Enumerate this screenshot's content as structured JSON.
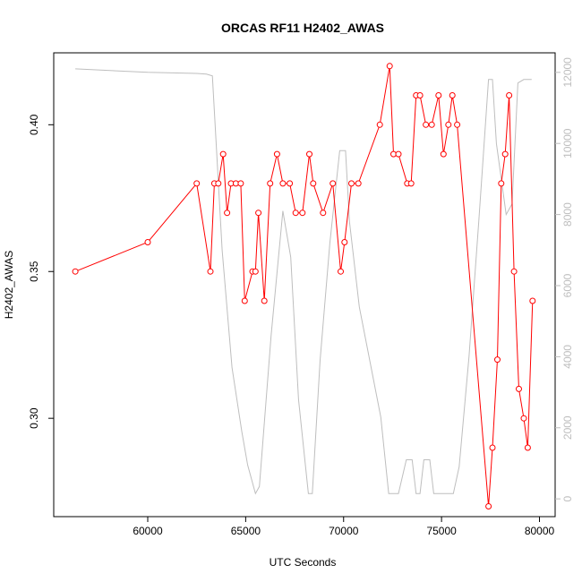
{
  "chart_data": {
    "type": "line",
    "title": "ORCAS RF11 H2402_AWAS",
    "xlabel": "UTC Seconds",
    "ylabel": "H2402_AWAS",
    "xlim": [
      55200,
      80800
    ],
    "ylim": [
      0.2665,
      0.4245
    ],
    "y2lim": [
      -500,
      12550
    ],
    "x_ticks": [
      60000,
      65000,
      70000,
      75000,
      80000
    ],
    "x_tick_labels": [
      "60000",
      "65000",
      "70000",
      "75000",
      "80000"
    ],
    "y_ticks": [
      0.3,
      0.35,
      0.4
    ],
    "y_tick_labels": [
      "0.30",
      "0.35",
      "0.40"
    ],
    "y2_ticks": [
      0,
      2000,
      4000,
      6000,
      8000,
      10000,
      12000
    ],
    "y2_tick_labels": [
      "0",
      "2000",
      "4000",
      "6000",
      "8000",
      "10000",
      "12000"
    ],
    "colors": {
      "primary": "#ff0000",
      "secondary": "#bebebe",
      "axis": "#000000"
    },
    "series": [
      {
        "axis": "left",
        "color": "#ff0000",
        "markers": "open-circle",
        "x": [
          56300,
          60000,
          62500,
          63200,
          63400,
          63600,
          63850,
          64050,
          64250,
          64500,
          64750,
          64950,
          65350,
          65500,
          65650,
          65950,
          66250,
          66600,
          66900,
          67250,
          67550,
          67900,
          68250,
          68450,
          68950,
          69450,
          69850,
          70050,
          70400,
          70750,
          71850,
          72350,
          72550,
          72800,
          73250,
          73450,
          73700,
          73900,
          74200,
          74500,
          74850,
          75100,
          75350,
          75550,
          75800,
          77400,
          77600,
          77850,
          78050,
          78250,
          78450,
          78700,
          78950,
          79200,
          79400,
          79650
        ],
        "y": [
          0.35,
          0.36,
          0.38,
          0.35,
          0.38,
          0.38,
          0.39,
          0.37,
          0.38,
          0.38,
          0.38,
          0.34,
          0.35,
          0.35,
          0.37,
          0.34,
          0.38,
          0.39,
          0.38,
          0.38,
          0.37,
          0.37,
          0.39,
          0.38,
          0.37,
          0.38,
          0.35,
          0.36,
          0.38,
          0.38,
          0.4,
          0.42,
          0.39,
          0.39,
          0.38,
          0.38,
          0.41,
          0.41,
          0.4,
          0.4,
          0.41,
          0.39,
          0.4,
          0.41,
          0.4,
          0.27,
          0.29,
          0.32,
          0.38,
          0.39,
          0.41,
          0.35,
          0.31,
          0.3,
          0.29,
          0.34
        ]
      },
      {
        "axis": "right",
        "color": "#bebebe",
        "markers": "none",
        "x": [
          56300,
          60000,
          62500,
          63000,
          63300,
          63800,
          64300,
          64800,
          65100,
          65500,
          65700,
          66300,
          66900,
          67300,
          67700,
          68200,
          68400,
          68800,
          69300,
          69800,
          70100,
          70300,
          70800,
          71900,
          72300,
          72800,
          73200,
          73500,
          73700,
          73900,
          74100,
          74400,
          74600,
          74800,
          75600,
          75900,
          76400,
          76900,
          77400,
          77600,
          77800,
          78300,
          78600,
          78900,
          79200,
          79600
        ],
        "y": [
          12100,
          12000,
          11970,
          11950,
          11900,
          7000,
          3700,
          1900,
          950,
          150,
          350,
          4600,
          8100,
          6800,
          2800,
          150,
          150,
          3900,
          7200,
          9800,
          9800,
          7800,
          5400,
          2300,
          150,
          150,
          1100,
          1100,
          150,
          150,
          1100,
          1100,
          150,
          150,
          150,
          900,
          4000,
          7800,
          11800,
          11800,
          10000,
          8000,
          8300,
          11700,
          11800,
          11800
        ]
      }
    ]
  }
}
